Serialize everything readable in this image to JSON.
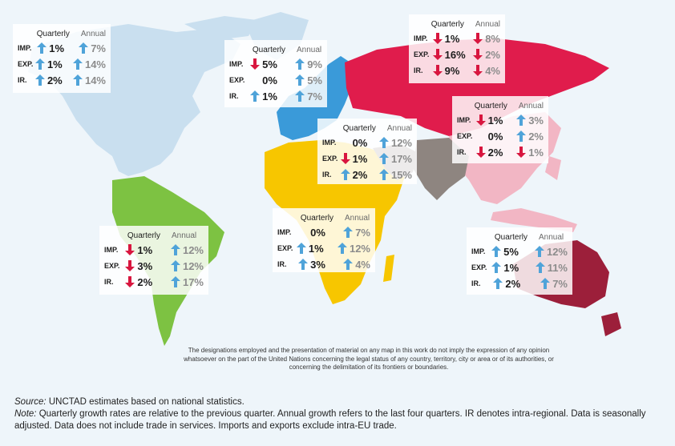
{
  "colors": {
    "north_america": "#c9dfef",
    "south_america": "#7dc242",
    "europe": "#3a9ad9",
    "africa": "#f7c600",
    "russia": "#e01c4c",
    "asia_east": "#f2b6c4",
    "south_asia": "#8e8580",
    "oceania": "#9c1f3a",
    "up_arrow": "#4fa3d9",
    "down_arrow": "#d8163f"
  },
  "regions": [
    {
      "id": "north-america",
      "q_header": "Quarterly",
      "a_header": "Annual",
      "rows": [
        {
          "label": "IMP.",
          "q_dir": "up",
          "q": "1%",
          "a_dir": "up",
          "a": "7%"
        },
        {
          "label": "EXP.",
          "q_dir": "up",
          "q": "1%",
          "a_dir": "up",
          "a": "14%"
        },
        {
          "label": "IR.",
          "q_dir": "up",
          "q": "2%",
          "a_dir": "up",
          "a": "14%"
        }
      ]
    },
    {
      "id": "europe",
      "q_header": "Quarterly",
      "a_header": "Annual",
      "rows": [
        {
          "label": "IMP.",
          "q_dir": "down",
          "q": "5%",
          "a_dir": "up",
          "a": "9%"
        },
        {
          "label": "EXP.",
          "q_dir": "none",
          "q": "0%",
          "a_dir": "up",
          "a": "5%"
        },
        {
          "label": "IR.",
          "q_dir": "up",
          "q": "1%",
          "a_dir": "up",
          "a": "7%"
        }
      ]
    },
    {
      "id": "russia",
      "q_header": "Quarterly",
      "a_header": "Annual",
      "rows": [
        {
          "label": "IMP.",
          "q_dir": "down",
          "q": "1%",
          "a_dir": "down",
          "a": "8%"
        },
        {
          "label": "EXP.",
          "q_dir": "down",
          "q": "16%",
          "a_dir": "down",
          "a": "2%"
        },
        {
          "label": "IR.",
          "q_dir": "down",
          "q": "9%",
          "a_dir": "down",
          "a": "4%"
        }
      ]
    },
    {
      "id": "east-asia",
      "q_header": "Quarterly",
      "a_header": "Annual",
      "rows": [
        {
          "label": "IMP.",
          "q_dir": "down",
          "q": "1%",
          "a_dir": "up",
          "a": "3%"
        },
        {
          "label": "EXP.",
          "q_dir": "none",
          "q": "0%",
          "a_dir": "up",
          "a": "2%"
        },
        {
          "label": "IR.",
          "q_dir": "down",
          "q": "2%",
          "a_dir": "down",
          "a": "1%"
        }
      ]
    },
    {
      "id": "west-asia",
      "q_header": "Quarterly",
      "a_header": "Annual",
      "rows": [
        {
          "label": "IMP.",
          "q_dir": "none",
          "q": "0%",
          "a_dir": "up",
          "a": "12%"
        },
        {
          "label": "EXP.",
          "q_dir": "down",
          "q": "1%",
          "a_dir": "up",
          "a": "17%"
        },
        {
          "label": "IR.",
          "q_dir": "up",
          "q": "2%",
          "a_dir": "up",
          "a": "15%"
        }
      ]
    },
    {
      "id": "africa",
      "q_header": "Quarterly",
      "a_header": "Annual",
      "rows": [
        {
          "label": "IMP.",
          "q_dir": "none",
          "q": "0%",
          "a_dir": "up",
          "a": "7%"
        },
        {
          "label": "EXP.",
          "q_dir": "up",
          "q": "1%",
          "a_dir": "up",
          "a": "12%"
        },
        {
          "label": "IR.",
          "q_dir": "up",
          "q": "3%",
          "a_dir": "up",
          "a": "4%"
        }
      ]
    },
    {
      "id": "south-america",
      "q_header": "Quarterly",
      "a_header": "Annual",
      "rows": [
        {
          "label": "IMP.",
          "q_dir": "down",
          "q": "1%",
          "a_dir": "up",
          "a": "12%"
        },
        {
          "label": "EXP.",
          "q_dir": "down",
          "q": "3%",
          "a_dir": "up",
          "a": "12%"
        },
        {
          "label": "IR.",
          "q_dir": "down",
          "q": "2%",
          "a_dir": "up",
          "a": "17%"
        }
      ]
    },
    {
      "id": "oceania",
      "q_header": "Quarterly",
      "a_header": "Annual",
      "rows": [
        {
          "label": "IMP.",
          "q_dir": "up",
          "q": "5%",
          "a_dir": "up",
          "a": "12%"
        },
        {
          "label": "EXP.",
          "q_dir": "up",
          "q": "1%",
          "a_dir": "up",
          "a": "11%"
        },
        {
          "label": "IR.",
          "q_dir": "up",
          "q": "2%",
          "a_dir": "up",
          "a": "7%"
        }
      ]
    }
  ],
  "disclaimer": "The designations employed and the presentation of material on any map in this  work do not imply the expression of any opinion whatsoever on the part of the  United Nations concerning the legal status of any country, territory, city or area or of its authorities, or concerning the delimitation of its frontiers or boundaries.",
  "footer": {
    "source_label": "Source:",
    "source_text": " UNCTAD estimates based on national statistics.",
    "note_label": "Note:",
    "note_text": " Quarterly growth rates are relative to the previous quarter. Annual growth refers to the last four quarters. IR denotes intra-regional. Data is seasonally adjusted. Data does not include trade in services. Imports and exports exclude intra-EU trade."
  }
}
